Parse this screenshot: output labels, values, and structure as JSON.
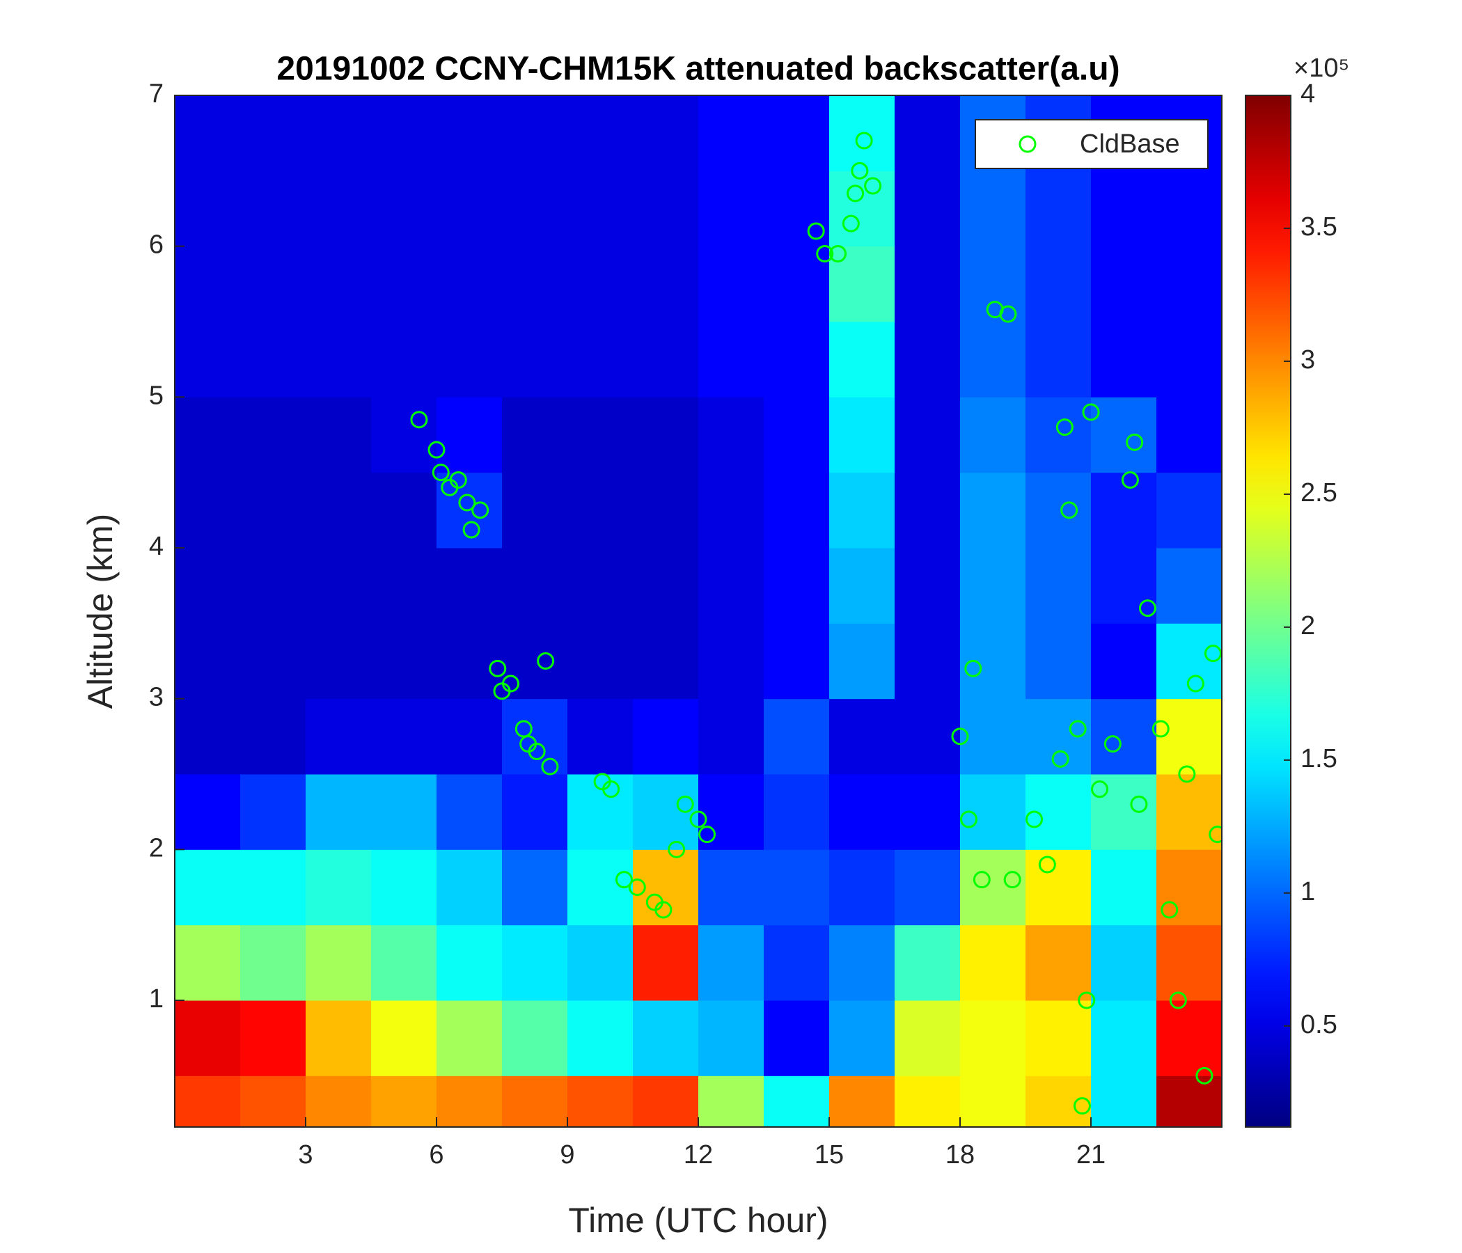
{
  "chart_data": {
    "type": "heatmap",
    "title": "20191002 CCNY-CHM15K attenuated backscatter(a.u)",
    "x_label": "Time (UTC hour)",
    "y_label": "Altitude (km)",
    "xlim": [
      0,
      24
    ],
    "xticks": [
      3,
      6,
      9,
      12,
      15,
      18,
      21
    ],
    "ylim": [
      0.16,
      7
    ],
    "yticks": [
      1,
      2,
      3,
      4,
      5,
      6,
      7
    ],
    "x": [
      0.75,
      2.25,
      3.75,
      5.25,
      6.75,
      8.25,
      9.75,
      11.25,
      12.75,
      14.25,
      15.75,
      17.25,
      18.75,
      20.25,
      21.75,
      23.25
    ],
    "y": [
      0.25,
      0.75,
      1.25,
      1.75,
      2.25,
      2.75,
      3.25,
      3.75,
      4.25,
      4.75,
      5.25,
      5.75,
      6.25,
      6.75
    ],
    "z": [
      [
        3.3,
        3.2,
        3.0,
        2.9,
        3.0,
        3.1,
        3.2,
        3.3,
        2.2,
        1.6,
        3.0,
        2.6,
        2.5,
        2.7,
        1.5,
        3.8
      ],
      [
        3.6,
        3.5,
        2.8,
        2.5,
        2.2,
        1.9,
        1.6,
        1.4,
        1.3,
        0.6,
        1.2,
        2.4,
        2.5,
        2.6,
        1.5,
        3.5
      ],
      [
        2.2,
        2.0,
        2.2,
        1.9,
        1.6,
        1.5,
        1.4,
        3.4,
        1.2,
        0.8,
        1.1,
        1.8,
        2.6,
        2.9,
        1.4,
        3.2
      ],
      [
        1.6,
        1.6,
        1.7,
        1.6,
        1.4,
        1.0,
        1.6,
        2.8,
        0.9,
        0.9,
        0.8,
        0.9,
        2.2,
        2.6,
        1.6,
        3.0
      ],
      [
        0.6,
        0.8,
        1.3,
        1.3,
        0.9,
        0.7,
        1.5,
        1.4,
        0.6,
        0.8,
        0.6,
        0.6,
        1.4,
        1.6,
        1.8,
        2.8
      ],
      [
        0.4,
        0.4,
        0.5,
        0.5,
        0.5,
        0.8,
        0.5,
        0.6,
        0.5,
        0.9,
        0.5,
        0.5,
        1.2,
        1.2,
        0.9,
        2.5
      ],
      [
        0.4,
        0.4,
        0.4,
        0.4,
        0.4,
        0.4,
        0.4,
        0.4,
        0.5,
        0.6,
        1.2,
        0.5,
        1.2,
        1.0,
        0.6,
        1.5
      ],
      [
        0.4,
        0.4,
        0.4,
        0.4,
        0.4,
        0.4,
        0.4,
        0.4,
        0.5,
        0.6,
        1.3,
        0.5,
        1.2,
        1.0,
        0.7,
        1.0
      ],
      [
        0.4,
        0.4,
        0.4,
        0.4,
        0.8,
        0.4,
        0.4,
        0.4,
        0.5,
        0.6,
        1.4,
        0.5,
        1.2,
        1.0,
        0.7,
        0.8
      ],
      [
        0.4,
        0.4,
        0.4,
        0.5,
        0.6,
        0.4,
        0.4,
        0.4,
        0.5,
        0.6,
        1.5,
        0.5,
        1.1,
        0.9,
        1.0,
        0.6
      ],
      [
        0.5,
        0.5,
        0.5,
        0.5,
        0.5,
        0.5,
        0.5,
        0.5,
        0.6,
        0.6,
        1.6,
        0.5,
        1.0,
        0.8,
        0.6,
        0.6
      ],
      [
        0.5,
        0.5,
        0.5,
        0.5,
        0.5,
        0.5,
        0.5,
        0.5,
        0.6,
        0.6,
        1.8,
        0.5,
        1.0,
        0.8,
        0.6,
        0.6
      ],
      [
        0.5,
        0.5,
        0.5,
        0.5,
        0.5,
        0.5,
        0.5,
        0.5,
        0.6,
        0.6,
        1.7,
        0.5,
        1.0,
        0.8,
        0.6,
        0.6
      ],
      [
        0.5,
        0.5,
        0.5,
        0.5,
        0.5,
        0.5,
        0.5,
        0.5,
        0.6,
        0.6,
        1.6,
        0.5,
        1.0,
        0.8,
        0.6,
        0.6
      ]
    ],
    "colormap": "jet",
    "zlim": [
      0.12,
      4
    ],
    "zticks": [
      0.5,
      1,
      1.5,
      2,
      2.5,
      3,
      3.5,
      4
    ],
    "colorbar_exponent_label": "×10⁵",
    "legend_position": "upper right",
    "series": [
      {
        "name": "CldBase",
        "type": "scatter",
        "color": "#00ff00",
        "x": [
          5.6,
          6.0,
          6.1,
          6.3,
          6.5,
          6.7,
          6.8,
          7.0,
          7.4,
          7.5,
          7.7,
          8.0,
          8.1,
          8.3,
          8.5,
          8.6,
          9.8,
          10.0,
          10.3,
          10.6,
          11.0,
          11.2,
          11.5,
          11.7,
          12.0,
          12.2,
          14.7,
          14.9,
          15.2,
          15.5,
          15.6,
          15.7,
          15.8,
          16.0,
          18.0,
          18.3,
          18.2,
          18.5,
          18.8,
          19.1,
          19.2,
          19.7,
          20.0,
          20.3,
          20.4,
          20.5,
          20.7,
          20.9,
          20.8,
          21.0,
          21.2,
          21.5,
          21.9,
          22.0,
          22.1,
          22.3,
          22.6,
          22.8,
          23.0,
          23.2,
          23.4,
          23.6,
          23.8,
          23.9
        ],
        "y": [
          4.85,
          4.65,
          4.5,
          4.4,
          4.45,
          4.3,
          4.12,
          4.25,
          3.2,
          3.05,
          3.1,
          2.8,
          2.7,
          2.65,
          3.25,
          2.55,
          2.45,
          2.4,
          1.8,
          1.75,
          1.65,
          1.6,
          2.0,
          2.3,
          2.2,
          2.1,
          6.1,
          5.95,
          5.95,
          6.15,
          6.35,
          6.5,
          6.7,
          6.4,
          2.75,
          3.2,
          2.2,
          1.8,
          5.58,
          5.55,
          1.8,
          2.2,
          1.9,
          2.6,
          4.8,
          4.25,
          2.8,
          1.0,
          0.3,
          4.9,
          2.4,
          2.7,
          4.45,
          4.7,
          2.3,
          3.6,
          2.8,
          1.6,
          1.0,
          2.5,
          3.1,
          0.5,
          3.3,
          2.1
        ]
      }
    ]
  }
}
